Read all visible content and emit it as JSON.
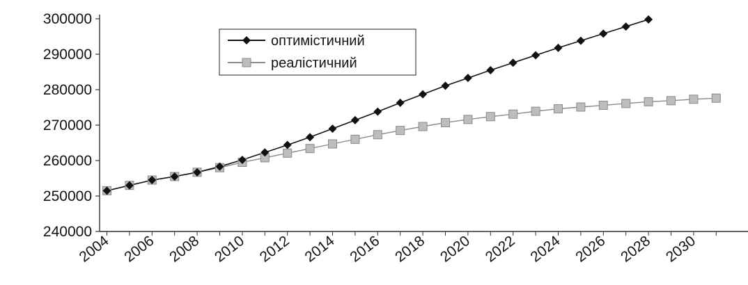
{
  "chart_data": {
    "type": "line",
    "title": "",
    "xlabel": "",
    "ylabel": "",
    "x": [
      2004,
      2005,
      2006,
      2007,
      2008,
      2009,
      2010,
      2011,
      2012,
      2013,
      2014,
      2015,
      2016,
      2017,
      2018,
      2019,
      2020,
      2021,
      2022,
      2023,
      2024,
      2025,
      2026,
      2027,
      2028,
      2029,
      2030,
      2031
    ],
    "x_tick_labels": [
      "2004",
      "2006",
      "2008",
      "2010",
      "2012",
      "2014",
      "2016",
      "2018",
      "2020",
      "2022",
      "2024",
      "2026",
      "2028",
      "2030"
    ],
    "y_tick_labels": [
      "240000",
      "250000",
      "260000",
      "270000",
      "280000",
      "290000",
      "300000"
    ],
    "ylim": [
      240000,
      300000
    ],
    "grid": false,
    "legend_position": "top-center",
    "series": [
      {
        "name": "оптимістичний",
        "color": "#111111",
        "marker": "diamond",
        "values": [
          251500,
          253000,
          254500,
          255500,
          256700,
          258300,
          260200,
          262300,
          264400,
          266600,
          269000,
          271400,
          273800,
          276300,
          278700,
          281100,
          283300,
          285500,
          287600,
          289700,
          291800,
          293800,
          295800,
          297800,
          299800,
          null,
          null,
          null
        ]
      },
      {
        "name": "реалістичний",
        "color": "#a8a8a8",
        "marker": "square",
        "values": [
          251500,
          253000,
          254500,
          255500,
          256700,
          258000,
          259500,
          260800,
          262100,
          263400,
          264700,
          266000,
          267300,
          268500,
          269600,
          270700,
          271600,
          272400,
          273100,
          273900,
          274600,
          275100,
          275600,
          276100,
          276600,
          276900,
          277300,
          277600
        ]
      }
    ]
  }
}
